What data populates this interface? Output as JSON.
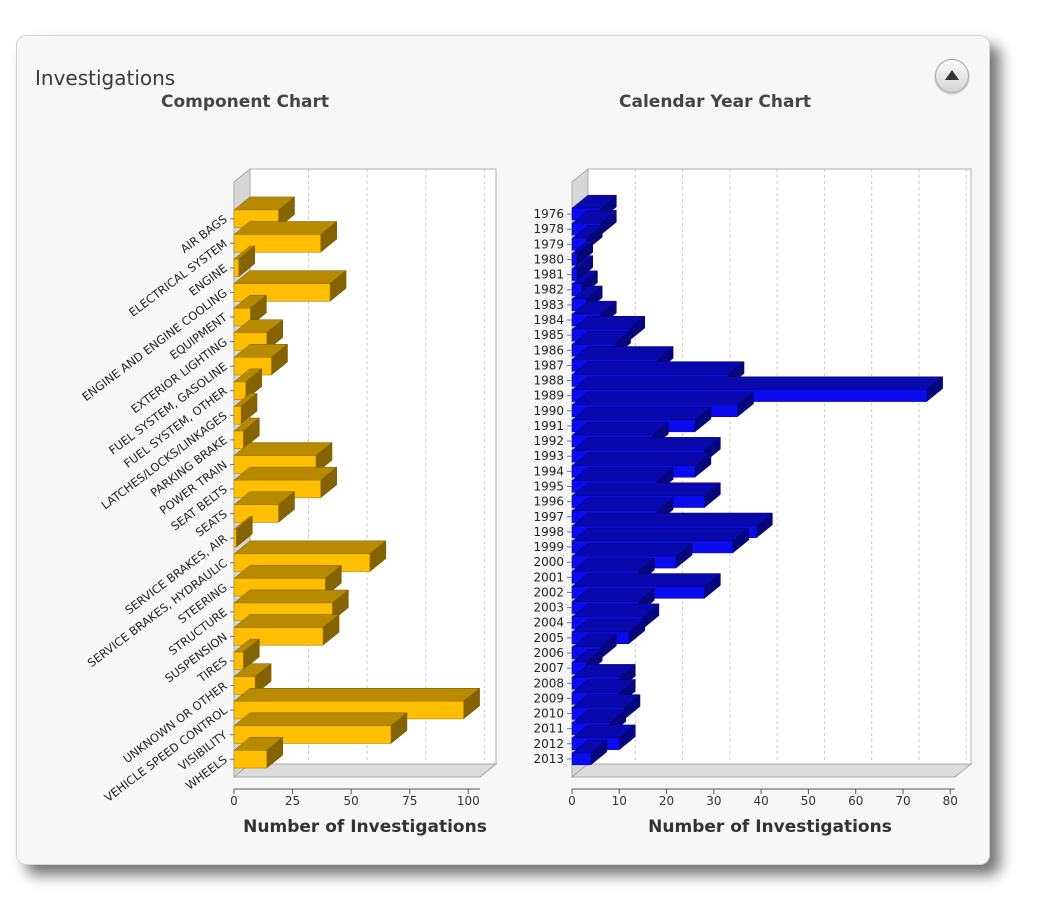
{
  "panel": {
    "title": "Investigations",
    "collapse_icon": "triangle-up-icon"
  },
  "chart_data": [
    {
      "type": "bar",
      "orientation": "horizontal",
      "title": "Component Chart",
      "xlabel": "Number of Investigations",
      "ylabel": "",
      "xlim": [
        0,
        105
      ],
      "xticks": [
        0,
        25,
        50,
        75,
        100
      ],
      "grid": true,
      "color": "#FFBF00",
      "categories": [
        "AIR BAGS",
        "ELECTRICAL SYSTEM",
        "ENGINE",
        "ENGINE AND ENGINE COOLING",
        "EQUIPMENT",
        "EXTERIOR LIGHTING",
        "FUEL SYSTEM, GASOLINE",
        "FUEL SYSTEM, OTHER",
        "LATCHES/LOCKS/LINKAGES",
        "PARKING BRAKE",
        "POWER TRAIN",
        "SEAT BELTS",
        "SEATS",
        "SERVICE BRAKES, AIR",
        "SERVICE BRAKES, HYDRAULIC",
        "STEERING",
        "STRUCTURE",
        "SUSPENSION",
        "TIRES",
        "UNKNOWN OR OTHER",
        "VEHICLE SPEED CONTROL",
        "VISIBILITY",
        "WHEELS"
      ],
      "values": [
        19,
        37,
        2,
        41,
        7,
        14,
        16,
        5,
        3,
        4,
        35,
        37,
        19,
        1,
        58,
        39,
        42,
        38,
        4,
        9,
        98,
        67,
        14
      ]
    },
    {
      "type": "bar",
      "orientation": "horizontal",
      "title": "Calendar Year Chart",
      "xlabel": "Number of Investigations",
      "ylabel": "",
      "xlim": [
        0,
        81
      ],
      "xticks": [
        0,
        10,
        20,
        30,
        40,
        50,
        60,
        70,
        80
      ],
      "grid": true,
      "color": "#0B0BF0",
      "categories": [
        "1976",
        "1978",
        "1979",
        "1980",
        "1981",
        "1982",
        "1983",
        "1984",
        "1985",
        "1986",
        "1987",
        "1988",
        "1989",
        "1990",
        "1991",
        "1992",
        "1993",
        "1994",
        "1995",
        "1996",
        "1997",
        "1998",
        "1999",
        "2000",
        "2001",
        "2002",
        "2003",
        "2004",
        "2005",
        "2006",
        "2007",
        "2008",
        "2009",
        "2010",
        "2011",
        "2012",
        "2013"
      ],
      "values": [
        6,
        6,
        3,
        1,
        1,
        2,
        3,
        6,
        12,
        9,
        18,
        33,
        75,
        35,
        26,
        17,
        28,
        26,
        18,
        28,
        18,
        39,
        34,
        22,
        14,
        28,
        14,
        15,
        12,
        6,
        3,
        10,
        10,
        11,
        8,
        10,
        4
      ]
    }
  ]
}
